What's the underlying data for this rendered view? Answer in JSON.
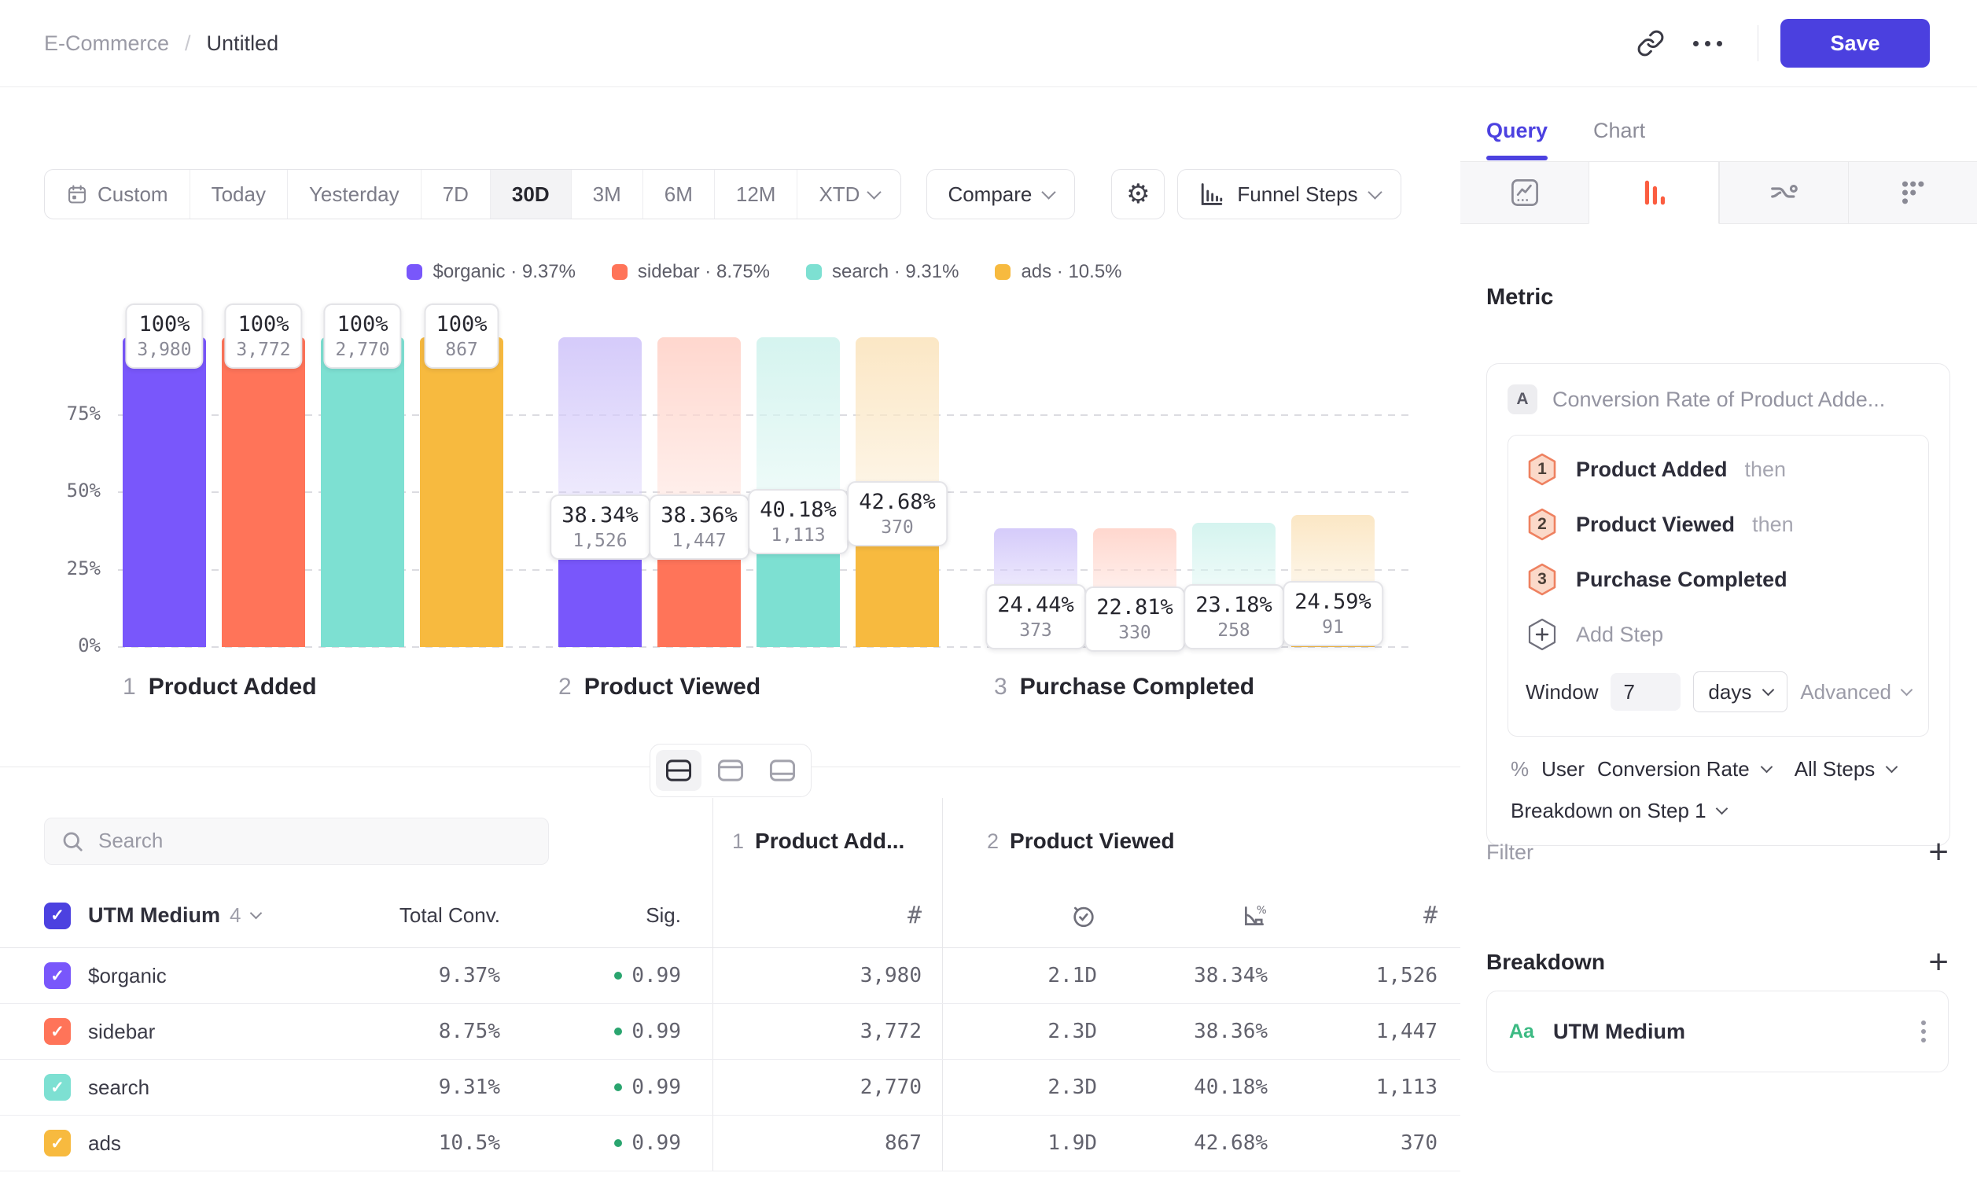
{
  "topbar": {
    "breadcrumb_parent": "E-Commerce",
    "breadcrumb_sep": "/",
    "breadcrumb_current": "Untitled",
    "save_label": "Save"
  },
  "icons": {
    "gear": "⚙",
    "hash": "#",
    "check": "✓"
  },
  "toolbar": {
    "ranges": [
      "Custom",
      "Today",
      "Yesterday",
      "7D",
      "30D",
      "3M",
      "6M",
      "12M",
      "XTD"
    ],
    "active_range": "30D",
    "compare_label": "Compare",
    "chart_type_label": "Funnel Steps"
  },
  "chart_data": {
    "type": "bar",
    "subtype": "funnel-steps",
    "ylim": [
      0,
      100
    ],
    "yticks": [
      {
        "label": "75%",
        "value": 75
      },
      {
        "label": "50%",
        "value": 50
      },
      {
        "label": "25%",
        "value": 25
      },
      {
        "label": "0%",
        "value": 0
      }
    ],
    "steps": [
      {
        "num": "1",
        "label": "Product Added"
      },
      {
        "num": "2",
        "label": "Product Viewed"
      },
      {
        "num": "3",
        "label": "Purchase Completed"
      }
    ],
    "series": [
      {
        "name": "$organic",
        "color": "#7957FB",
        "light": "#D5CBFA",
        "legend": "$organic · 9.37%",
        "counts": [
          3980,
          1526,
          373
        ],
        "count_labels": [
          "3,980",
          "1,526",
          "373"
        ],
        "pct_labels": [
          "100%",
          "38.34%",
          "24.44%"
        ]
      },
      {
        "name": "sidebar",
        "color": "#FF7459",
        "light": "#FFD7CE",
        "legend": "sidebar · 8.75%",
        "counts": [
          3772,
          1447,
          330
        ],
        "count_labels": [
          "3,772",
          "1,447",
          "330"
        ],
        "pct_labels": [
          "100%",
          "38.36%",
          "22.81%"
        ]
      },
      {
        "name": "search",
        "color": "#7DE0D2",
        "light": "#D5F4EF",
        "legend": "search · 9.31%",
        "counts": [
          2770,
          1113,
          258
        ],
        "count_labels": [
          "2,770",
          "1,113",
          "258"
        ],
        "pct_labels": [
          "100%",
          "40.18%",
          "23.18%"
        ]
      },
      {
        "name": "ads",
        "color": "#F7BA3F",
        "light": "#FBE7C5",
        "legend": "ads · 10.5%",
        "counts": [
          867,
          370,
          91
        ],
        "count_labels": [
          "867",
          "370",
          "91"
        ],
        "pct_labels": [
          "100%",
          "42.68%",
          "24.59%"
        ]
      }
    ]
  },
  "table": {
    "search_placeholder": "Search",
    "group_headers": [
      {
        "num": "1",
        "label": "Product Add..."
      },
      {
        "num": "2",
        "label": "Product Viewed"
      }
    ],
    "header": {
      "breakdown_label": "UTM Medium",
      "breakdown_count": "4",
      "total_conv": "Total Conv.",
      "sig": "Sig."
    },
    "rows": [
      {
        "name": "$organic",
        "color": "#7957FB",
        "total_conv": "9.37%",
        "sig": "0.99",
        "step1_count": "3,980",
        "avg_time": "2.1D",
        "conv_rate": "38.34%",
        "step2_count": "1,526"
      },
      {
        "name": "sidebar",
        "color": "#FF7459",
        "total_conv": "8.75%",
        "sig": "0.99",
        "step1_count": "3,772",
        "avg_time": "2.3D",
        "conv_rate": "38.36%",
        "step2_count": "1,447"
      },
      {
        "name": "search",
        "color": "#7DE0D2",
        "total_conv": "9.31%",
        "sig": "0.99",
        "step1_count": "2,770",
        "avg_time": "2.3D",
        "conv_rate": "40.18%",
        "step2_count": "1,113"
      },
      {
        "name": "ads",
        "color": "#F7BA3F",
        "total_conv": "10.5%",
        "sig": "0.99",
        "step1_count": "867",
        "avg_time": "1.9D",
        "conv_rate": "42.68%",
        "step2_count": "370"
      }
    ]
  },
  "panel": {
    "tabs": {
      "query": "Query",
      "chart": "Chart"
    },
    "metric_heading": "Metric",
    "metric": {
      "badge": "A",
      "title": "Conversion Rate of Product Adde...",
      "steps": [
        {
          "num": "1",
          "label": "Product Added",
          "suffix": "then"
        },
        {
          "num": "2",
          "label": "Product Viewed",
          "suffix": "then"
        },
        {
          "num": "3",
          "label": "Purchase Completed",
          "suffix": ""
        }
      ],
      "add_step": "Add Step",
      "window_label": "Window",
      "window_value": "7",
      "window_unit": "days",
      "advanced_label": "Advanced",
      "measure_prefix": "%",
      "measure_user": "User",
      "measure_type": "Conversion Rate",
      "measure_scope": "All Steps",
      "breakdown_on": "Breakdown on Step 1"
    },
    "filter": {
      "heading": "Filter"
    },
    "breakdown": {
      "heading": "Breakdown",
      "item_type": "Aa",
      "item_label": "UTM Medium"
    }
  }
}
